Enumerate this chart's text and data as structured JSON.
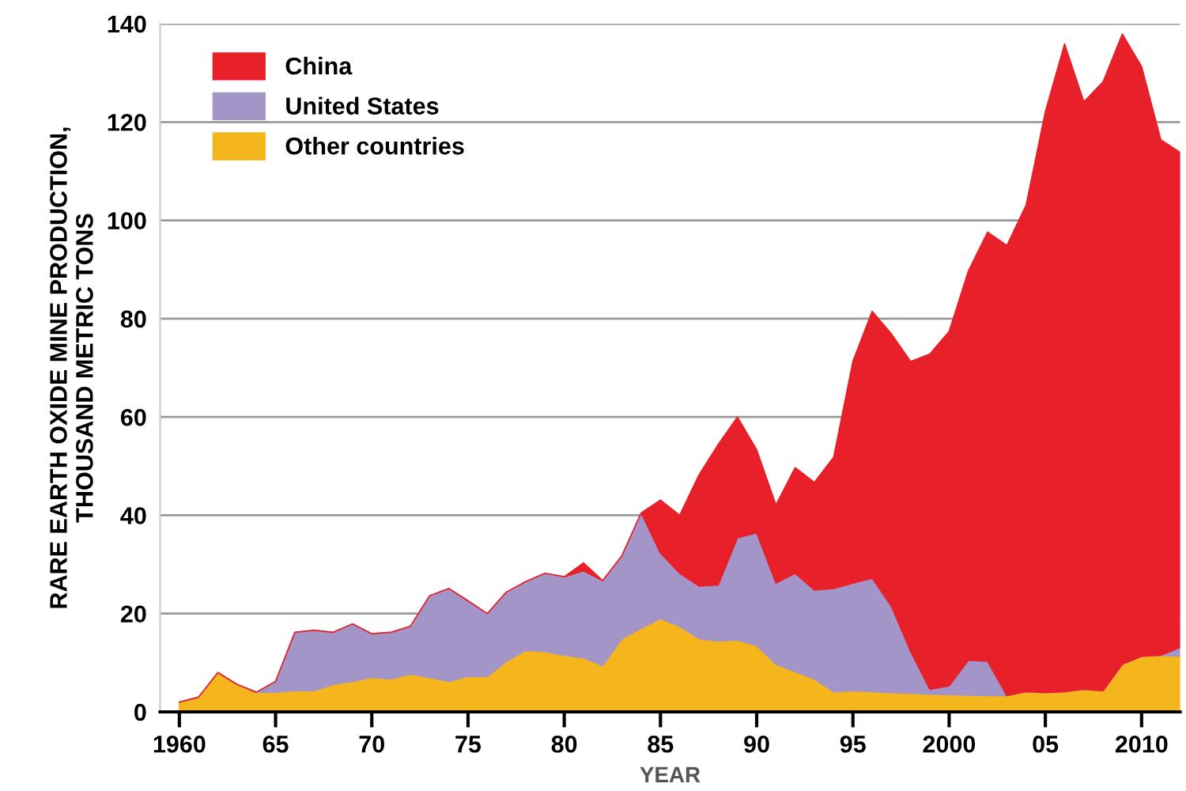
{
  "chart_data": {
    "type": "area",
    "stacked": true,
    "xlabel": "YEAR",
    "ylabel": "RARE EARTH OXIDE MINE PRODUCTION,\nTHOUSAND METRIC TONS",
    "x": [
      1960,
      1961,
      1962,
      1963,
      1964,
      1965,
      1966,
      1967,
      1968,
      1969,
      1970,
      1971,
      1972,
      1973,
      1974,
      1975,
      1976,
      1977,
      1978,
      1979,
      1980,
      1981,
      1982,
      1983,
      1984,
      1985,
      1986,
      1987,
      1988,
      1989,
      1990,
      1991,
      1992,
      1993,
      1994,
      1995,
      1996,
      1997,
      1998,
      1999,
      2000,
      2001,
      2002,
      2003,
      2004,
      2005,
      2006,
      2007,
      2008,
      2009,
      2010,
      2011,
      2012
    ],
    "series": [
      {
        "name": "Other countries",
        "color": "#f5b51c",
        "values": [
          2,
          3,
          8,
          5.6,
          4,
          4,
          4.3,
          4.3,
          5.6,
          6.2,
          7,
          6.7,
          7.7,
          7,
          6.2,
          7.2,
          7.2,
          10.3,
          12.5,
          12.3,
          11.5,
          11,
          9.4,
          14.9,
          17,
          19,
          17.4,
          14.9,
          14.4,
          14.6,
          13.5,
          9.7,
          8.2,
          6.7,
          4.1,
          4.3,
          4.1,
          3.9,
          3.8,
          3.6,
          3.5,
          3.4,
          3.3,
          3.3,
          4.1,
          3.9,
          4.1,
          4.6,
          4.3,
          9.7,
          11.3,
          11.5,
          11.3
        ]
      },
      {
        "name": "United States",
        "color": "#a395c8",
        "values": [
          0,
          0,
          0,
          0,
          0,
          2.2,
          11.9,
          12.3,
          10.6,
          11.7,
          8.9,
          9.5,
          9.7,
          16.6,
          18.9,
          15.4,
          12.8,
          14.1,
          14,
          15.9,
          16,
          17.7,
          17.3,
          16.9,
          23.5,
          13.3,
          10.8,
          10.7,
          11.4,
          20.8,
          22.9,
          16.5,
          20,
          18.1,
          21,
          21.9,
          23.1,
          17.6,
          8.5,
          1,
          1.8,
          7.1,
          7,
          0,
          0,
          0,
          0,
          0,
          0,
          0,
          0,
          0,
          1.8
        ]
      },
      {
        "name": "China",
        "color": "#e8202a",
        "values": [
          0,
          0,
          0,
          0,
          0,
          0,
          0,
          0,
          0,
          0,
          0,
          0,
          0,
          0,
          0,
          0,
          0,
          0,
          0,
          0,
          0,
          1.6,
          0,
          0,
          0,
          10.8,
          11.8,
          22.6,
          28.6,
          24.6,
          16.9,
          15.9,
          21.5,
          21.9,
          26.7,
          45.1,
          54.3,
          55.4,
          59,
          68.2,
          72.1,
          79.2,
          87.3,
          91.6,
          99,
          118.2,
          131.8,
          119.5,
          123.9,
          128.2,
          120,
          104.9,
          100.7
        ]
      }
    ],
    "xlim": [
      1959,
      2012
    ],
    "xticks": [
      {
        "value": 1960,
        "label": "1960"
      },
      {
        "value": 1965,
        "label": "65"
      },
      {
        "value": 1970,
        "label": "70"
      },
      {
        "value": 1975,
        "label": "75"
      },
      {
        "value": 1980,
        "label": "80"
      },
      {
        "value": 1985,
        "label": "85"
      },
      {
        "value": 1990,
        "label": "90"
      },
      {
        "value": 1995,
        "label": "95"
      },
      {
        "value": 2000,
        "label": "2000"
      },
      {
        "value": 2005,
        "label": "05"
      },
      {
        "value": 2010,
        "label": "2010"
      }
    ],
    "ylim": [
      0,
      140
    ],
    "yticks": [
      0,
      20,
      40,
      60,
      80,
      100,
      120,
      140
    ],
    "grid": "y",
    "legend": "top left"
  }
}
